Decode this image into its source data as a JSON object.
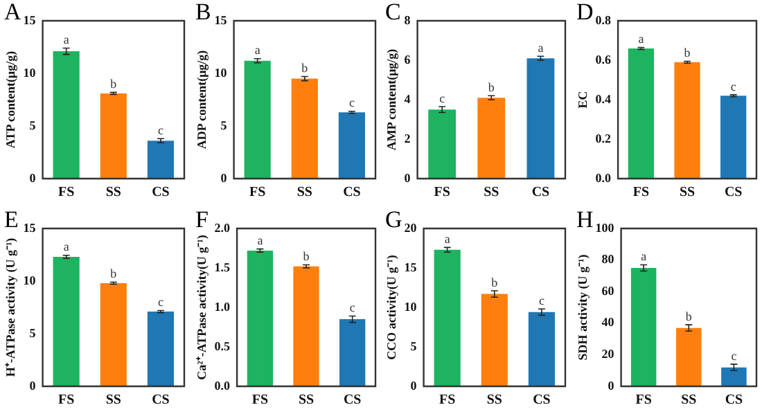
{
  "chart_data": [
    {
      "type": "bar",
      "title": "A",
      "ylabel": "ATP content(μg/g)",
      "categories": [
        "FS",
        "SS",
        "CS"
      ],
      "values": [
        12.1,
        8.1,
        3.6
      ],
      "errors": [
        0.3,
        0.1,
        0.2
      ],
      "colors": [
        "#1db35f",
        "#ff7f0e",
        "#1f77b4"
      ],
      "ylim": [
        0,
        15
      ],
      "yticks": [
        0,
        5,
        10,
        15
      ],
      "grid": false,
      "annotations": [
        {
          "text": "a",
          "x": "FS",
          "y": 12.4
        },
        {
          "text": "b",
          "x": "SS",
          "y": 8.2
        },
        {
          "text": "c",
          "x": "CS",
          "y": 3.8
        }
      ]
    },
    {
      "type": "bar",
      "title": "B",
      "ylabel": "ADP content(μg/g)",
      "categories": [
        "FS",
        "SS",
        "CS"
      ],
      "values": [
        11.2,
        9.5,
        6.3
      ],
      "errors": [
        0.2,
        0.2,
        0.1
      ],
      "colors": [
        "#1db35f",
        "#ff7f0e",
        "#1f77b4"
      ],
      "ylim": [
        0,
        15
      ],
      "yticks": [
        0,
        5,
        10,
        15
      ],
      "grid": false,
      "annotations": [
        {
          "text": "a",
          "x": "FS",
          "y": 11.4
        },
        {
          "text": "b",
          "x": "SS",
          "y": 9.7
        },
        {
          "text": "c",
          "x": "CS",
          "y": 6.4
        }
      ]
    },
    {
      "type": "bar",
      "title": "C",
      "ylabel": "AMP content(μg/g)",
      "categories": [
        "FS",
        "SS",
        "CS"
      ],
      "values": [
        3.5,
        4.1,
        6.1
      ],
      "errors": [
        0.15,
        0.1,
        0.1
      ],
      "colors": [
        "#1db35f",
        "#ff7f0e",
        "#1f77b4"
      ],
      "ylim": [
        0,
        8
      ],
      "yticks": [
        0,
        2,
        4,
        6,
        8
      ],
      "grid": false,
      "annotations": [
        {
          "text": "c",
          "x": "FS",
          "y": 3.65
        },
        {
          "text": "b",
          "x": "SS",
          "y": 4.2
        },
        {
          "text": "a",
          "x": "CS",
          "y": 6.2
        }
      ]
    },
    {
      "type": "bar",
      "title": "D",
      "ylabel": "EC",
      "categories": [
        "FS",
        "SS",
        "CS"
      ],
      "values": [
        0.66,
        0.59,
        0.42
      ],
      "errors": [
        0.005,
        0.005,
        0.005
      ],
      "colors": [
        "#1db35f",
        "#ff7f0e",
        "#1f77b4"
      ],
      "ylim": [
        0,
        0.8
      ],
      "yticks": [
        {
          "value": 0,
          "label": "0.0"
        },
        0.2,
        0.4,
        0.6,
        0.8
      ],
      "grid": false,
      "annotations": [
        {
          "text": "a",
          "x": "FS",
          "y": 0.665
        },
        {
          "text": "b",
          "x": "SS",
          "y": 0.595
        },
        {
          "text": "c",
          "x": "CS",
          "y": 0.425
        }
      ]
    },
    {
      "type": "bar",
      "title": "E",
      "ylabel": "H⁺-ATPase activity (U g⁻¹)",
      "categories": [
        "FS",
        "SS",
        "CS"
      ],
      "values": [
        12.3,
        9.8,
        7.1
      ],
      "errors": [
        0.15,
        0.1,
        0.1
      ],
      "colors": [
        "#1db35f",
        "#ff7f0e",
        "#1f77b4"
      ],
      "ylim": [
        0,
        15
      ],
      "yticks": [
        0,
        5,
        10,
        15
      ],
      "grid": false,
      "annotations": [
        {
          "text": "a",
          "x": "FS",
          "y": 12.45
        },
        {
          "text": "b",
          "x": "SS",
          "y": 9.9
        },
        {
          "text": "c",
          "x": "CS",
          "y": 7.2
        }
      ]
    },
    {
      "type": "bar",
      "title": "F",
      "ylabel": "Ca²⁺-ATPase activity(U g⁻¹)",
      "categories": [
        "FS",
        "SS",
        "CS"
      ],
      "values": [
        1.72,
        1.52,
        0.85
      ],
      "errors": [
        0.02,
        0.02,
        0.04
      ],
      "colors": [
        "#1db35f",
        "#ff7f0e",
        "#1f77b4"
      ],
      "ylim": [
        0,
        2
      ],
      "yticks": [
        {
          "value": 0,
          "label": "0.0"
        },
        0.5,
        {
          "value": 1,
          "label": "1.0"
        },
        1.5,
        {
          "value": 2,
          "label": "2.0"
        }
      ],
      "grid": false,
      "annotations": [
        {
          "text": "a",
          "x": "FS",
          "y": 1.74
        },
        {
          "text": "b",
          "x": "SS",
          "y": 1.54
        },
        {
          "text": "c",
          "x": "CS",
          "y": 0.89
        }
      ]
    },
    {
      "type": "bar",
      "title": "G",
      "ylabel": "CCO activity(U g⁻¹)",
      "categories": [
        "FS",
        "SS",
        "CS"
      ],
      "values": [
        17.3,
        11.7,
        9.4
      ],
      "errors": [
        0.3,
        0.4,
        0.4
      ],
      "colors": [
        "#1db35f",
        "#ff7f0e",
        "#1f77b4"
      ],
      "ylim": [
        0,
        20
      ],
      "yticks": [
        0,
        5,
        10,
        15,
        20
      ],
      "grid": false,
      "annotations": [
        {
          "text": "a",
          "x": "FS",
          "y": 17.6
        },
        {
          "text": "b",
          "x": "SS",
          "y": 12.1
        },
        {
          "text": "c",
          "x": "CS",
          "y": 9.8
        }
      ]
    },
    {
      "type": "bar",
      "title": "H",
      "ylabel": "SDH activity (U g⁻¹)",
      "categories": [
        "FS",
        "SS",
        "CS"
      ],
      "values": [
        75,
        37,
        12
      ],
      "errors": [
        2,
        2,
        2
      ],
      "colors": [
        "#1db35f",
        "#ff7f0e",
        "#1f77b4"
      ],
      "ylim": [
        0,
        100
      ],
      "yticks": [
        0,
        20,
        40,
        60,
        80,
        100
      ],
      "grid": false,
      "annotations": [
        {
          "text": "a",
          "x": "FS",
          "y": 77
        },
        {
          "text": "b",
          "x": "SS",
          "y": 39
        },
        {
          "text": "c",
          "x": "CS",
          "y": 14
        }
      ]
    }
  ]
}
